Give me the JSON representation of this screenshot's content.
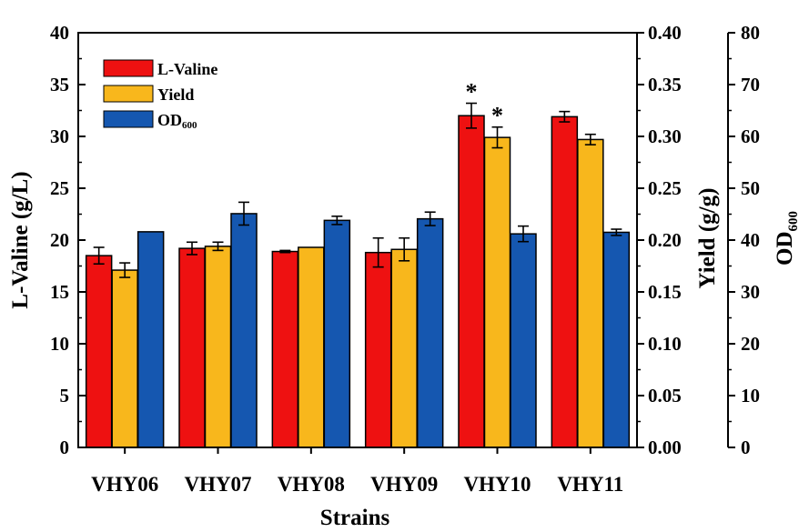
{
  "chart_data": {
    "type": "bar",
    "xlabel": "Strains",
    "categories": [
      "VHY06",
      "VHY07",
      "VHY08",
      "VHY09",
      "VHY10",
      "VHY11"
    ],
    "axes": {
      "left": {
        "label": "L-Valine (g/L)",
        "range": [
          0,
          40
        ],
        "ticks": [
          0,
          5,
          10,
          15,
          20,
          25,
          30,
          35,
          40
        ],
        "tick_labels": [
          "0",
          "5",
          "10",
          "15",
          "20",
          "25",
          "30",
          "35",
          "40"
        ]
      },
      "middle": {
        "label": "Yield (g/g)",
        "range": [
          0,
          0.4
        ],
        "ticks": [
          0,
          0.05,
          0.1,
          0.15,
          0.2,
          0.25,
          0.3,
          0.35,
          0.4
        ],
        "tick_labels": [
          "0.00",
          "0.05",
          "0.10",
          "0.15",
          "0.20",
          "0.25",
          "0.30",
          "0.35",
          "0.40"
        ]
      },
      "right": {
        "label_main": "OD",
        "label_sub": "600",
        "range": [
          0,
          80
        ],
        "ticks": [
          0,
          10,
          20,
          30,
          40,
          50,
          60,
          70,
          80
        ],
        "tick_labels": [
          "0",
          "10",
          "20",
          "30",
          "40",
          "50",
          "60",
          "70",
          "80"
        ]
      }
    },
    "series": [
      {
        "name": "L-Valine",
        "axis": "left",
        "color": "#ee1111",
        "values": [
          18.5,
          19.2,
          18.9,
          18.8,
          32.0,
          31.9
        ],
        "errors": [
          0.8,
          0.6,
          0.1,
          1.4,
          1.2,
          0.5
        ]
      },
      {
        "name": "Yield",
        "axis": "middle",
        "color": "#f8b71c",
        "values": [
          0.171,
          0.194,
          0.193,
          0.191,
          0.299,
          0.297
        ],
        "errors": [
          0.007,
          0.004,
          0.0,
          0.011,
          0.01,
          0.005
        ]
      },
      {
        "name_main": "OD",
        "name_sub": "600",
        "axis": "right",
        "color": "#1557b0",
        "values": [
          41.6,
          45.1,
          43.8,
          44.1,
          41.2,
          41.5
        ],
        "errors": [
          0.0,
          2.2,
          0.8,
          1.3,
          1.5,
          0.6
        ]
      }
    ],
    "annotations": [
      {
        "text": "*",
        "category": "VHY10",
        "series": 0
      },
      {
        "text": "*",
        "category": "VHY10",
        "series": 1
      }
    ],
    "legend": {
      "placement": "top-left"
    },
    "grid": false
  }
}
